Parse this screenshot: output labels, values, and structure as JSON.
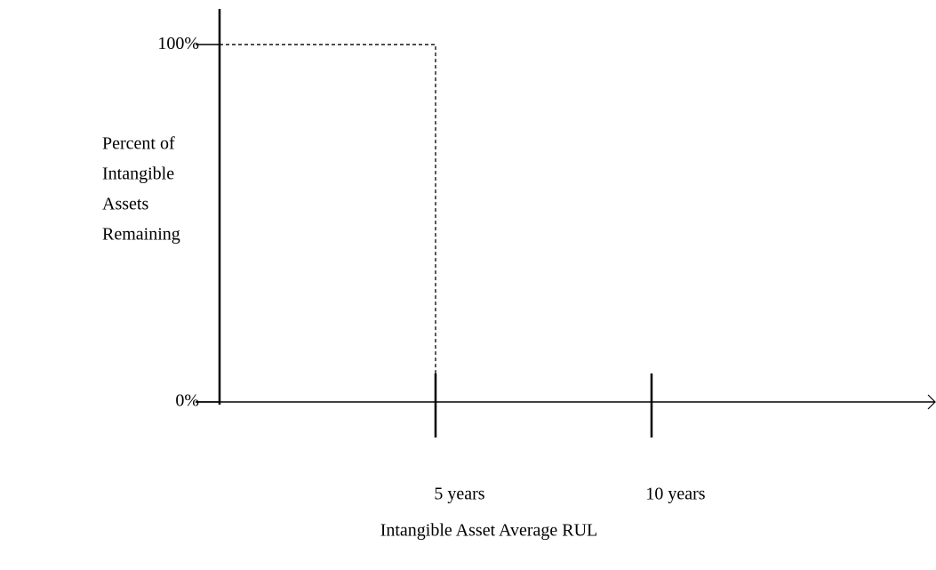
{
  "chart_data": {
    "type": "line",
    "ylabel": [
      "Percent of",
      "Intangible",
      "Assets",
      "Remaining"
    ],
    "xlabel": "Intangible Asset Average  RUL",
    "x": [
      0,
      5,
      5
    ],
    "series": [
      {
        "color": "#000000",
        "values": [
          100,
          100,
          0
        ]
      }
    ],
    "xlim": [
      0,
      16.5
    ],
    "xticks": [
      {
        "value": 5,
        "label": "5 years"
      },
      {
        "value": 10,
        "label": "10 years"
      }
    ],
    "ylim": [
      0,
      110
    ],
    "yticks": [
      {
        "value": 0,
        "label": "0%"
      },
      {
        "value": 100,
        "label": "100%"
      }
    ]
  }
}
